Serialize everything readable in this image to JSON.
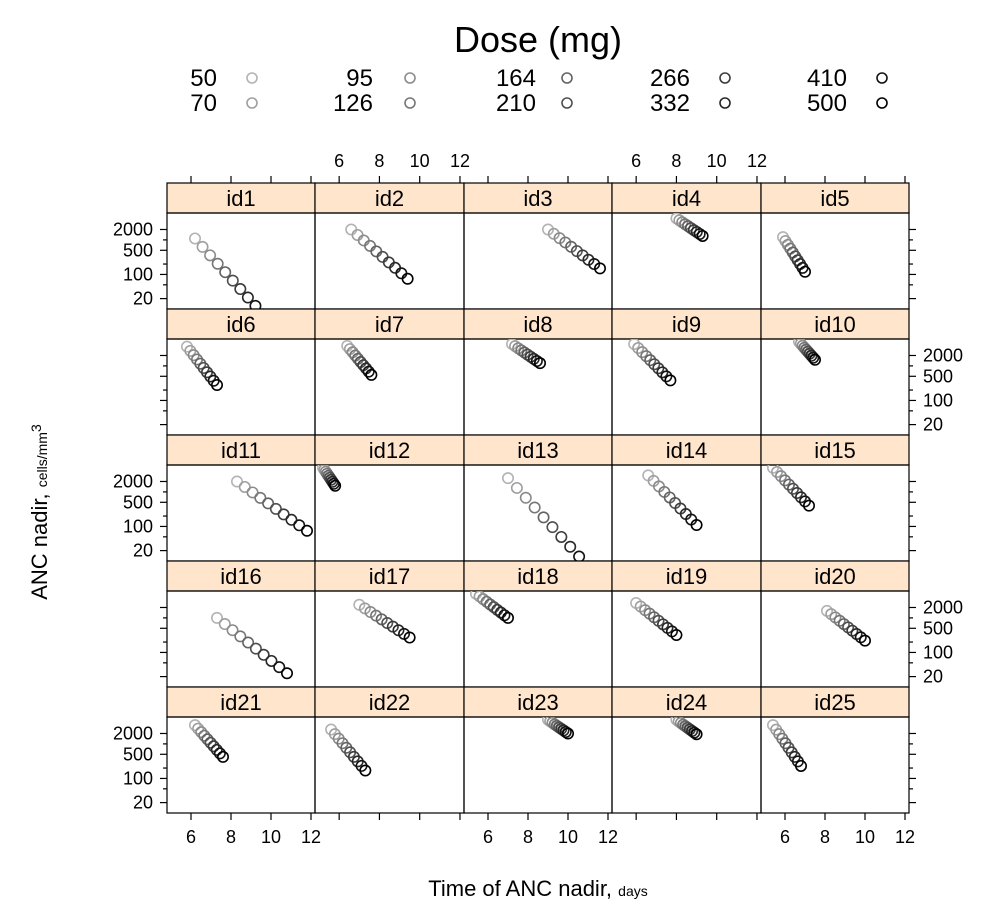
{
  "chart_data": {
    "type": "scatter",
    "legend": {
      "title": "Dose (mg)",
      "placement": "top",
      "entries": [
        "50",
        "70",
        "95",
        "126",
        "164",
        "210",
        "266",
        "332",
        "410",
        "500"
      ]
    },
    "doses": [
      50,
      70,
      95,
      126,
      164,
      210,
      266,
      332,
      410,
      500
    ],
    "xlabel": "Time of ANC nadir,",
    "xlabel_unit": "days",
    "ylabel": "ANC nadir,",
    "ylabel_unit": "cells/mm",
    "ylabel_unit_sup": "3",
    "x_ticks": [
      "6",
      "8",
      "10",
      "12"
    ],
    "x_tick_values": [
      6,
      8,
      10,
      12
    ],
    "y_ticks": [
      "20",
      "100",
      "500",
      "2000"
    ],
    "y_tick_values": [
      20,
      100,
      500,
      2000
    ],
    "y_scale": "log",
    "xlim": [
      4.8,
      12.2
    ],
    "ylim": [
      10,
      6000
    ],
    "panels": [
      {
        "name": "id1",
        "t_start": 6.2,
        "t_end": 9.6,
        "anc_start": 1100,
        "anc_end": 7
      },
      {
        "name": "id2",
        "t_start": 6.6,
        "t_end": 9.4,
        "anc_start": 2000,
        "anc_end": 75
      },
      {
        "name": "id3",
        "t_start": 9.0,
        "t_end": 11.6,
        "anc_start": 2000,
        "anc_end": 150
      },
      {
        "name": "id4",
        "t_start": 8.0,
        "t_end": 9.3,
        "anc_start": 4200,
        "anc_end": 1300
      },
      {
        "name": "id5",
        "t_start": 5.9,
        "t_end": 7.0,
        "anc_start": 1200,
        "anc_end": 120
      },
      {
        "name": "id6",
        "t_start": 5.8,
        "t_end": 7.3,
        "anc_start": 3600,
        "anc_end": 280
      },
      {
        "name": "id7",
        "t_start": 6.4,
        "t_end": 7.6,
        "anc_start": 3800,
        "anc_end": 550
      },
      {
        "name": "id8",
        "t_start": 7.2,
        "t_end": 8.6,
        "anc_start": 4300,
        "anc_end": 1200
      },
      {
        "name": "id9",
        "t_start": 5.9,
        "t_end": 7.7,
        "anc_start": 4300,
        "anc_end": 380
      },
      {
        "name": "id10",
        "t_start": 6.7,
        "t_end": 7.5,
        "anc_start": 5000,
        "anc_end": 1500
      },
      {
        "name": "id11",
        "t_start": 8.3,
        "t_end": 11.8,
        "anc_start": 2000,
        "anc_end": 75
      },
      {
        "name": "id12",
        "t_start": 5.2,
        "t_end": 5.8,
        "anc_start": 5000,
        "anc_end": 1500
      },
      {
        "name": "id13",
        "t_start": 7.0,
        "t_end": 11.0,
        "anc_start": 2500,
        "anc_end": 7
      },
      {
        "name": "id14",
        "t_start": 6.6,
        "t_end": 9.0,
        "anc_start": 3000,
        "anc_end": 110
      },
      {
        "name": "id15",
        "t_start": 5.4,
        "t_end": 7.2,
        "anc_start": 5000,
        "anc_end": 400
      },
      {
        "name": "id16",
        "t_start": 7.3,
        "t_end": 10.8,
        "anc_start": 1000,
        "anc_end": 25
      },
      {
        "name": "id17",
        "t_start": 7.0,
        "t_end": 9.5,
        "anc_start": 2400,
        "anc_end": 270
      },
      {
        "name": "id18",
        "t_start": 5.4,
        "t_end": 7.0,
        "anc_start": 5000,
        "anc_end": 1000
      },
      {
        "name": "id19",
        "t_start": 6.0,
        "t_end": 8.0,
        "anc_start": 2700,
        "anc_end": 320
      },
      {
        "name": "id20",
        "t_start": 8.1,
        "t_end": 10.0,
        "anc_start": 1600,
        "anc_end": 220
      },
      {
        "name": "id21",
        "t_start": 6.2,
        "t_end": 7.6,
        "anc_start": 3500,
        "anc_end": 420
      },
      {
        "name": "id22",
        "t_start": 5.6,
        "t_end": 7.3,
        "anc_start": 2600,
        "anc_end": 170
      },
      {
        "name": "id23",
        "t_start": 9.0,
        "t_end": 10.0,
        "anc_start": 5000,
        "anc_end": 2000
      },
      {
        "name": "id24",
        "t_start": 8.0,
        "t_end": 9.0,
        "anc_start": 5000,
        "anc_end": 1900
      },
      {
        "name": "id25",
        "t_start": 5.4,
        "t_end": 6.8,
        "anc_start": 3500,
        "anc_end": 230
      }
    ],
    "colors": {
      "strip": "#ffe5cc",
      "dose_lightest": "#b3b3b3",
      "dose_darkest": "#000000"
    }
  }
}
